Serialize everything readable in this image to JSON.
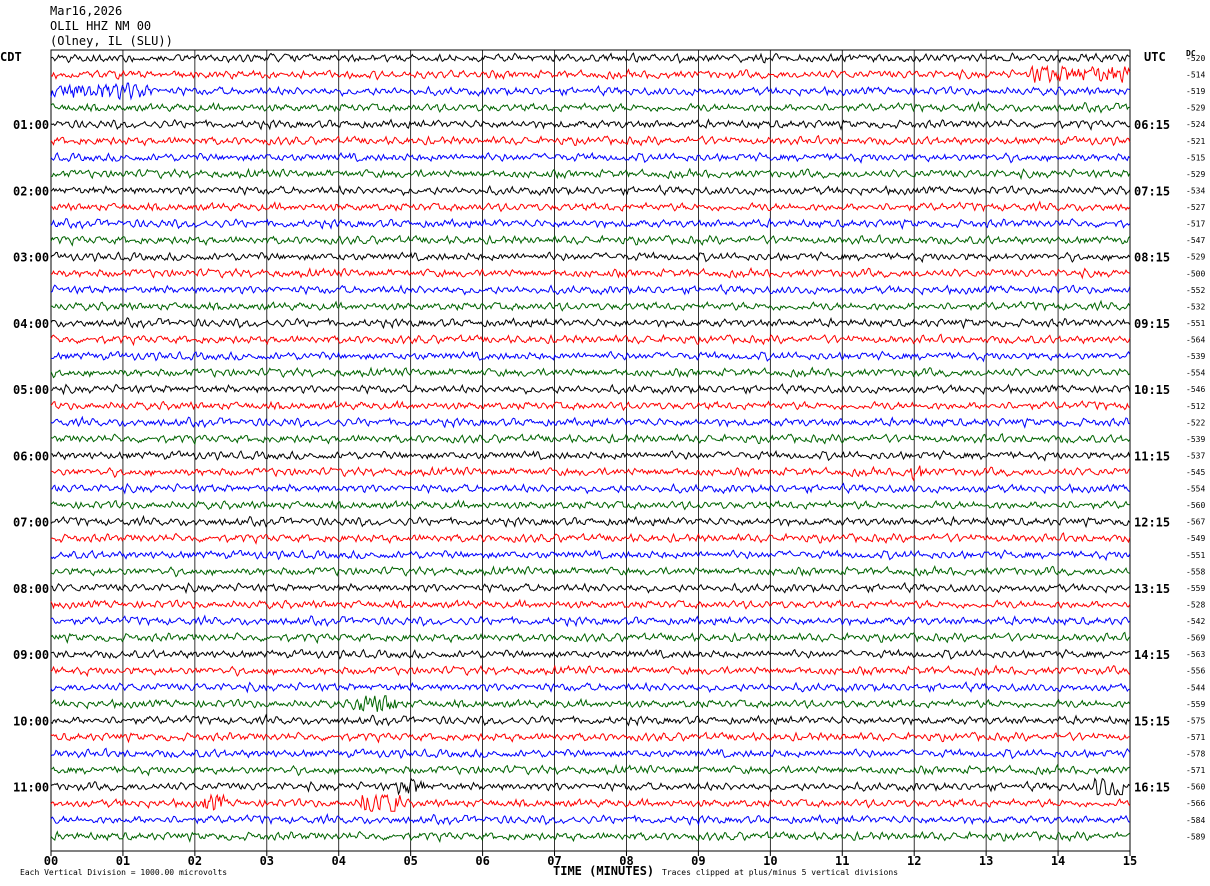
{
  "header": {
    "date": "Mar16,2026",
    "station": "OLIL HHZ NM 00",
    "location": "(Olney, IL (SLU))"
  },
  "left_axis_title": "CDT",
  "right_axis_title": "UTC",
  "dc_label": "DC",
  "footer": {
    "scale_note": "Each Vertical Division = 1000.00 microvolts",
    "clip_note": "Traces clipped at plus/minus 5 vertical divisions"
  },
  "colors": {
    "trace_cycle": [
      "#000000",
      "#ff0000",
      "#0000ff",
      "#006400"
    ],
    "grid": "#000000"
  },
  "chart_data": {
    "type": "line",
    "title": "",
    "xlabel": "TIME (MINUTES)",
    "ylabel": "",
    "xlim": [
      0,
      15
    ],
    "x_ticks": [
      "00",
      "01",
      "02",
      "03",
      "04",
      "05",
      "06",
      "07",
      "08",
      "09",
      "10",
      "11",
      "12",
      "13",
      "14",
      "15"
    ],
    "grid": "vertical lines each minute",
    "left_hour_labels": [
      "01:00",
      "02:00",
      "03:00",
      "04:00",
      "05:00",
      "06:00",
      "07:00",
      "08:00",
      "09:00",
      "10:00",
      "11:00"
    ],
    "right_hour_labels": [
      "06:15",
      "07:15",
      "08:15",
      "09:15",
      "10:15",
      "11:15",
      "12:15",
      "13:15",
      "14:15",
      "15:15",
      "16:15"
    ],
    "trace_count": 48,
    "dc_offsets": [
      "-520",
      "-514",
      "-519",
      "-529",
      "-524",
      "-521",
      "-515",
      "-529",
      "-534",
      "-527",
      "-517",
      "-547",
      "-529",
      "-500",
      "-552",
      "-532",
      "-551",
      "-564",
      "-539",
      "-554",
      "-546",
      "-512",
      "-522",
      "-539",
      "-537",
      "-545",
      "-554",
      "-560",
      "-567",
      "-549",
      "-551",
      "-558",
      "-559",
      "-528",
      "-542",
      "-569",
      "-563",
      "-556",
      "-544",
      "-559",
      "-575",
      "-571",
      "-578",
      "-571",
      "-560",
      "-566",
      "-584",
      "-589"
    ],
    "events": [
      {
        "trace": 1,
        "x_start": 13.6,
        "x_end": 15.0,
        "amplitude": 0.4
      },
      {
        "trace": 2,
        "x_start": 0.0,
        "x_end": 1.4,
        "amplitude": 0.35
      },
      {
        "trace": 25,
        "x_start": 11.9,
        "x_end": 12.1,
        "amplitude": 0.5
      },
      {
        "trace": 39,
        "x_start": 4.2,
        "x_end": 4.8,
        "amplitude": 0.45
      },
      {
        "trace": 44,
        "x_start": 14.5,
        "x_end": 14.9,
        "amplitude": 0.6
      },
      {
        "trace": 44,
        "x_start": 4.8,
        "x_end": 5.2,
        "amplitude": 0.4
      },
      {
        "trace": 45,
        "x_start": 4.3,
        "x_end": 4.9,
        "amplitude": 0.6
      },
      {
        "trace": 45,
        "x_start": 2.1,
        "x_end": 2.4,
        "amplitude": 0.4
      }
    ]
  }
}
